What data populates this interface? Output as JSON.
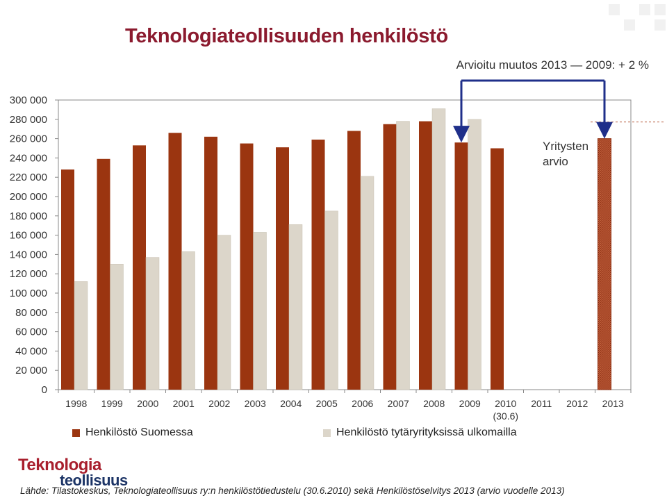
{
  "header": {
    "title": "Teknologiateollisuuden henkilöstö",
    "subnote": "Arvioitu muutos 2013 — 2009: + 2 %"
  },
  "annotation": {
    "estimate_label_line1": "Yritysten",
    "estimate_label_line2": "arvio"
  },
  "footer": {
    "logo_line1": "Teknologia",
    "logo_line2": "teollisuus",
    "source": "Lähde: Tilastokeskus, Teknologiateollisuus ry:n henkilöstötiedustelu (30.6.2010) sekä Henkilöstöselvitys 2013 (arvio vuodelle 2013)"
  },
  "colors": {
    "domestic": "#9b3510",
    "foreign": "#dcd6ca",
    "estimate": "#a5472a",
    "title": "#8b1a2e",
    "arrow": "#1f2f8a"
  },
  "chart_data": {
    "type": "bar",
    "title": "Teknologiateollisuuden henkilöstö",
    "categories": [
      "1998",
      "1999",
      "2000",
      "2001",
      "2002",
      "2003",
      "2004",
      "2005",
      "2006",
      "2007",
      "2008",
      "2009",
      "2010",
      "2011",
      "2012",
      "2013"
    ],
    "category_sublabels": {
      "2010": "(30.6)"
    },
    "series": [
      {
        "name": "Henkilöstö Suomessa",
        "values": [
          228000,
          239000,
          253000,
          266000,
          262000,
          255000,
          251000,
          259000,
          268000,
          275000,
          278000,
          256000,
          250000,
          null,
          null,
          260000
        ]
      },
      {
        "name": "Henkilöstö tytäryrityksissä ulkomailla",
        "values": [
          112000,
          130000,
          137000,
          143000,
          160000,
          163000,
          171000,
          185000,
          221000,
          278000,
          291000,
          280000,
          null,
          null,
          null,
          null
        ]
      }
    ],
    "estimate_category": "2013",
    "ylim": [
      0,
      300000
    ],
    "yticks": [
      0,
      20000,
      40000,
      60000,
      80000,
      100000,
      120000,
      140000,
      160000,
      180000,
      200000,
      220000,
      240000,
      260000,
      280000,
      300000
    ],
    "ytick_labels": [
      "0",
      "20 000",
      "40 000",
      "60 000",
      "80 000",
      "100 000",
      "120 000",
      "140 000",
      "160 000",
      "180 000",
      "200 000",
      "220 000",
      "240 000",
      "260 000",
      "280 000",
      "300 000"
    ],
    "grid": false,
    "legend": "bottom"
  }
}
